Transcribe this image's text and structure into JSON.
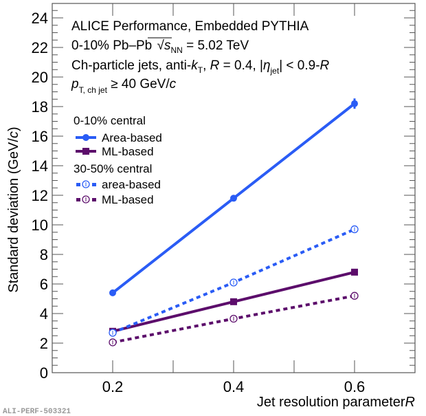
{
  "chart_data": {
    "type": "line",
    "x": [
      0.2,
      0.4,
      0.6
    ],
    "xlim": [
      0.1,
      0.7
    ],
    "ylim": [
      0,
      25
    ],
    "xticks": [
      "0.2",
      "0.4",
      "0.6"
    ],
    "yticks": [
      "0",
      "2",
      "4",
      "6",
      "8",
      "10",
      "12",
      "14",
      "16",
      "18",
      "20",
      "22",
      "24"
    ],
    "xlabel": "Jet resolution parameter",
    "xlabel_var": "R",
    "ylabel": "Standard deviation (GeV/",
    "ylabel_var": "c",
    "ylabel_end": ")",
    "grid": false,
    "legend_position": "top-left",
    "annotations": {
      "line1": "ALICE Performance, Embedded PYTHIA",
      "line2_a": "0-10% Pb–Pb ",
      "line2_s": "s",
      "line2_sub": "NN",
      "line2_b": " = 5.02 TeV",
      "line3_a": "Ch-particle jets, anti-",
      "line3_k": "k",
      "line3_ksub": "T",
      "line3_b": ", ",
      "line3_R": "R",
      "line3_c": " = 0.4, |",
      "line3_eta": "η",
      "line3_etasub": "jet",
      "line3_d": "| < 0.9-",
      "line3_R2": "R",
      "line4_p": "p",
      "line4_sub": "T, ch jet",
      "line4_b": " ≥ 40 GeV/",
      "line4_c": "c"
    },
    "legend_groups": [
      {
        "title": "0-10% central"
      },
      {
        "title": "30-50% central"
      }
    ],
    "series": [
      {
        "name": "Area-based",
        "group": "0-10% central",
        "color": "#2a5cf5",
        "style": "solid",
        "marker": "filled-circle",
        "values": [
          5.4,
          11.8,
          18.2
        ],
        "errors": [
          0.05,
          0.2,
          0.35
        ]
      },
      {
        "name": "ML-based",
        "group": "0-10% central",
        "color": "#5c0d6b",
        "style": "solid",
        "marker": "filled-square",
        "values": [
          2.8,
          4.8,
          6.8
        ],
        "errors": [
          0.03,
          0.05,
          0.08
        ]
      },
      {
        "name": "area-based",
        "group": "30-50% central",
        "color": "#2a5cf5",
        "style": "dashed",
        "marker": "open-circle",
        "values": [
          2.7,
          6.1,
          9.7
        ],
        "errors": [
          0.05,
          0.1,
          0.15
        ]
      },
      {
        "name": "ML-based",
        "group": "30-50% central",
        "color": "#5c0d6b",
        "style": "dashed",
        "marker": "open-circle",
        "values": [
          2.05,
          3.65,
          5.2
        ],
        "errors": [
          0.03,
          0.05,
          0.08
        ]
      }
    ],
    "watermark": "ALI-PERF-503321"
  }
}
